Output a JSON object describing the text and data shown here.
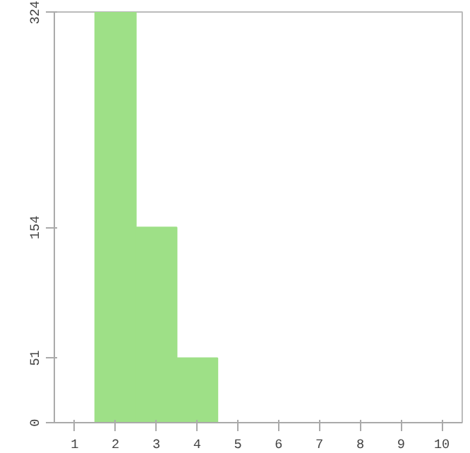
{
  "chart_data": {
    "type": "bar",
    "categories": [
      "1",
      "2",
      "3",
      "4",
      "5",
      "6",
      "7",
      "8",
      "9",
      "10"
    ],
    "values": [
      0,
      324,
      154,
      51,
      0,
      0,
      0,
      0,
      0,
      0
    ],
    "color": "#9ee087",
    "ylim": [
      0,
      324
    ],
    "yticks": [
      0,
      51,
      154,
      324
    ],
    "grid": false
  }
}
